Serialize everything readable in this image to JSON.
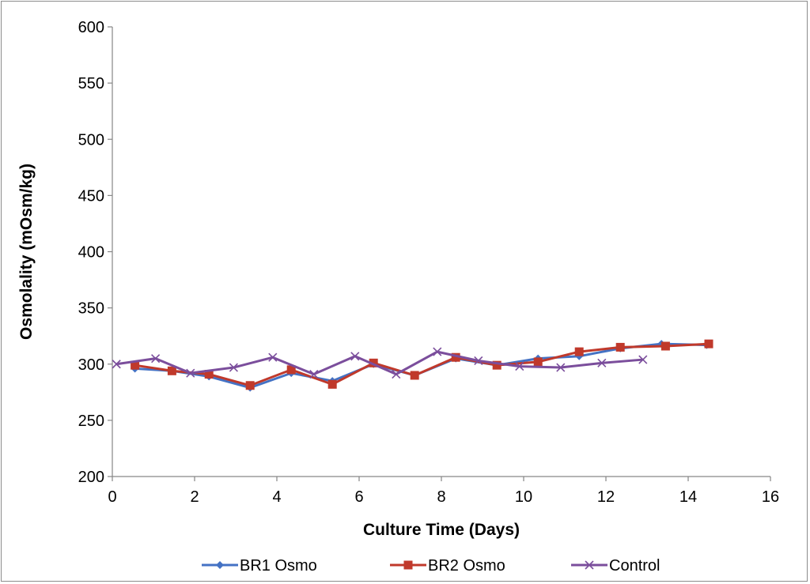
{
  "chart_data": {
    "type": "line",
    "xlabel": "Culture Time (Days)",
    "ylabel": "Osmolality (mOsm/kg)",
    "xlim": [
      0,
      16
    ],
    "ylim": [
      200,
      600
    ],
    "x_ticks": [
      0,
      2,
      4,
      6,
      8,
      10,
      12,
      14,
      16
    ],
    "y_ticks": [
      200,
      250,
      300,
      350,
      400,
      450,
      500,
      550,
      600
    ],
    "grid": false,
    "legend_position": "bottom",
    "series": [
      {
        "name": "BR1 Osmo",
        "color": "#4472C4",
        "marker": "diamond",
        "points": [
          [
            0.55,
            296
          ],
          [
            1.45,
            294
          ],
          [
            2.35,
            289
          ],
          [
            3.35,
            279
          ],
          [
            4.35,
            292
          ],
          [
            5.35,
            285
          ],
          [
            6.35,
            300
          ],
          [
            7.35,
            290
          ],
          [
            8.35,
            305
          ],
          [
            9.35,
            299
          ],
          [
            10.35,
            305
          ],
          [
            11.35,
            307
          ],
          [
            12.35,
            314
          ],
          [
            13.35,
            318
          ],
          [
            14.45,
            317
          ]
        ]
      },
      {
        "name": "BR2 Osmo",
        "color": "#C0392B",
        "marker": "square",
        "points": [
          [
            0.55,
            299
          ],
          [
            1.45,
            294
          ],
          [
            2.35,
            291
          ],
          [
            3.35,
            281
          ],
          [
            4.35,
            295
          ],
          [
            5.35,
            282
          ],
          [
            6.35,
            301
          ],
          [
            7.35,
            290
          ],
          [
            8.35,
            306
          ],
          [
            9.35,
            299
          ],
          [
            10.35,
            302
          ],
          [
            11.35,
            311
          ],
          [
            12.35,
            315
          ],
          [
            13.45,
            316
          ],
          [
            14.5,
            318
          ]
        ]
      },
      {
        "name": "Control",
        "color": "#7B4E9C",
        "marker": "x",
        "points": [
          [
            0.1,
            300
          ],
          [
            1.05,
            305
          ],
          [
            1.9,
            292
          ],
          [
            2.95,
            297
          ],
          [
            3.9,
            306
          ],
          [
            4.9,
            291
          ],
          [
            5.9,
            307
          ],
          [
            6.9,
            291
          ],
          [
            7.9,
            311
          ],
          [
            8.9,
            303
          ],
          [
            9.9,
            298
          ],
          [
            10.9,
            297
          ],
          [
            11.9,
            301
          ],
          [
            12.9,
            304
          ]
        ]
      }
    ]
  }
}
